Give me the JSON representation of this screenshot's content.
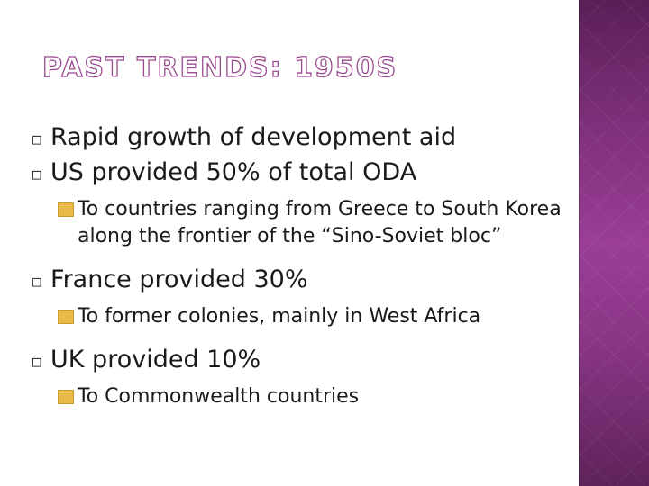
{
  "slide": {
    "title": "PAST TRENDS: 1950S",
    "accent_color": "#9a4a8e",
    "side_panel_color": "#8a3686",
    "bullets": [
      {
        "level": 1,
        "icon": "square-bullet-icon",
        "text": "Rapid growth of development aid"
      },
      {
        "level": 1,
        "icon": "square-bullet-icon",
        "text": "US provided 50% of total ODA"
      },
      {
        "level": 2,
        "icon": "orange-square-bullet-icon",
        "text": "To countries ranging from Greece to South Korea along the frontier of the “Sino-Soviet bloc”"
      },
      {
        "level": 1,
        "icon": "square-bullet-icon",
        "text": "France provided 30%"
      },
      {
        "level": 2,
        "icon": "orange-square-bullet-icon",
        "text": "To former colonies, mainly in West Africa"
      },
      {
        "level": 1,
        "icon": "square-bullet-icon",
        "text": "UK provided 10%"
      },
      {
        "level": 2,
        "icon": "orange-square-bullet-icon",
        "text": "To Commonwealth countries"
      }
    ]
  }
}
